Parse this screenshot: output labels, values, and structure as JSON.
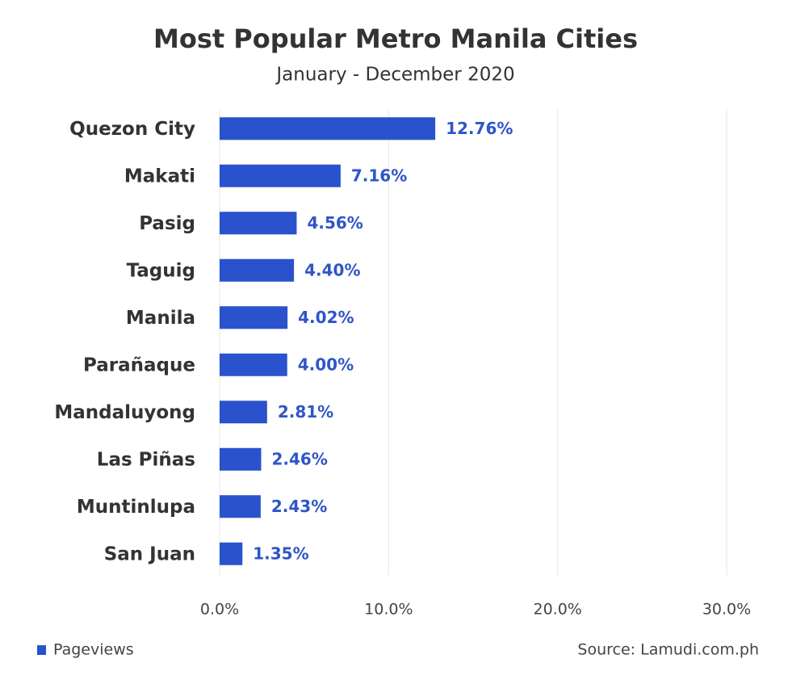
{
  "chart_data": {
    "type": "bar",
    "orientation": "horizontal",
    "title": "Most Popular Metro Manila Cities",
    "subtitle": "January - December 2020",
    "categories": [
      "Quezon City",
      "Makati",
      "Pasig",
      "Taguig",
      "Manila",
      "Parañaque",
      "Mandaluyong",
      "Las Piñas",
      "Muntinlupa",
      "San Juan"
    ],
    "series": [
      {
        "name": "Pageviews",
        "color": "#2a52cc",
        "values": [
          12.76,
          7.16,
          4.56,
          4.4,
          4.02,
          4.0,
          2.81,
          2.46,
          2.43,
          1.35
        ],
        "value_labels": [
          "12.76%",
          "7.16%",
          "4.56%",
          "4.40%",
          "4.02%",
          "4.00%",
          "2.81%",
          "2.46%",
          "2.43%",
          "1.35%"
        ]
      }
    ],
    "xlim": [
      0,
      30
    ],
    "xticks": [
      {
        "value": 0,
        "label": "0.0%"
      },
      {
        "value": 10,
        "label": "10.0%"
      },
      {
        "value": 20,
        "label": "20.0%"
      },
      {
        "value": 30,
        "label": "30.0%"
      }
    ],
    "grid": true,
    "legend": "bottom-left",
    "source": "Source: Lamudi.com.ph"
  }
}
